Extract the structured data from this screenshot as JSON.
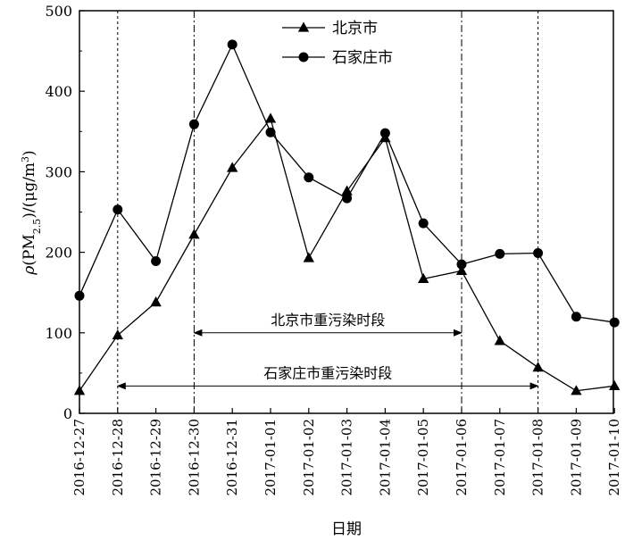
{
  "chart_data": {
    "type": "line",
    "x": [
      "2016-12-27",
      "2016-12-28",
      "2016-12-29",
      "2016-12-30",
      "2016-12-31",
      "2017-01-01",
      "2017-01-02",
      "2017-01-03",
      "2017-01-04",
      "2017-01-05",
      "2017-01-06",
      "2017-01-07",
      "2017-01-08",
      "2017-01-09",
      "2017-01-10"
    ],
    "series": [
      {
        "name": "北京市",
        "marker": "triangle",
        "values": [
          28,
          97,
          138,
          222,
          305,
          366,
          193,
          276,
          342,
          167,
          177,
          90,
          57,
          28,
          34
        ]
      },
      {
        "name": "石家庄市",
        "marker": "circle",
        "values": [
          146,
          253,
          189,
          359,
          458,
          349,
          293,
          267,
          348,
          236,
          185,
          198,
          199,
          120,
          113
        ]
      }
    ],
    "xlabel": "日期",
    "ylabel_parts": {
      "rho": "ρ",
      "open": "(PM",
      "sub": "2.5",
      "mid": ")/(μg/m",
      "sup": "3",
      "close": ")"
    },
    "ylim": [
      0,
      500
    ],
    "yticks": [
      0,
      100,
      200,
      300,
      400,
      500
    ],
    "grid": false,
    "legend_position": "top-center",
    "reference_lines": [
      {
        "date": "2016-12-28",
        "style": "dotted"
      },
      {
        "date": "2016-12-30",
        "style": "dash-dot"
      },
      {
        "date": "2017-01-06",
        "style": "dash-dot"
      },
      {
        "date": "2017-01-08",
        "style": "dotted"
      }
    ],
    "annotations": [
      {
        "text": "北京市重污染时段",
        "from": "2016-12-30",
        "to": "2017-01-06",
        "y": 100
      },
      {
        "text": "石家庄市重污染时段",
        "from": "2016-12-28",
        "to": "2017-01-08",
        "y": 34
      }
    ]
  }
}
